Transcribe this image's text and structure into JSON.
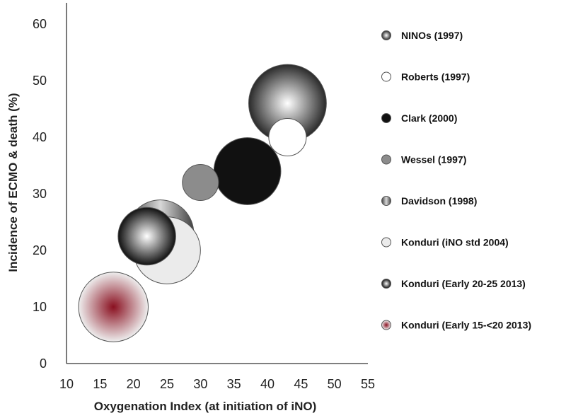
{
  "chart_data": {
    "type": "bubble",
    "xlabel": "Oxygenation Index (at initiation of iNO)",
    "ylabel": "Incidence of ECMO & death (%)",
    "xlim": [
      10,
      55
    ],
    "ylim": [
      0,
      60
    ],
    "xticks": [
      10,
      15,
      20,
      25,
      30,
      35,
      40,
      45,
      50,
      55
    ],
    "yticks": [
      0,
      10,
      20,
      30,
      40,
      50,
      60
    ],
    "grid": false,
    "legend_position": "right",
    "series": [
      {
        "name": "NINOs  (1997)",
        "x": 43.0,
        "y": 46,
        "radius": 5.8,
        "fill": "radial",
        "color_light": "#ffffff",
        "color_dark": "#2a2a2a"
      },
      {
        "name": "Roberts (1997)",
        "x": 43.0,
        "y": 40,
        "radius": 2.8,
        "fill": "solid",
        "color": "#ffffff"
      },
      {
        "name": "Clark (2000)",
        "x": 37.0,
        "y": 34,
        "radius": 5.0,
        "fill": "solid",
        "color": "#111111"
      },
      {
        "name": "Wessel (1997)",
        "x": 30.0,
        "y": 32,
        "radius": 2.7,
        "fill": "solid",
        "color": "#8c8c8c"
      },
      {
        "name": "Davidson (1998)",
        "x": 24.0,
        "y": 23,
        "radius": 5.0,
        "fill": "linear",
        "color_light": "#d8d8d8",
        "color_dark": "#404040"
      },
      {
        "name": "Konduri (iNO std 2004)",
        "x": 25.0,
        "y": 20,
        "radius": 5.0,
        "fill": "solid",
        "color": "#ebebeb"
      },
      {
        "name": "Konduri (Early 20-25 2013)",
        "x": 22.0,
        "y": 22.5,
        "radius": 4.3,
        "fill": "radial",
        "color_light": "#ffffff",
        "color_dark": "#111111"
      },
      {
        "name": "Konduri (Early 15-<20 2013)",
        "x": 17.0,
        "y": 10,
        "radius": 5.2,
        "fill": "radial",
        "color_light": "#8a1020",
        "color_dark": "#eeeeee"
      }
    ],
    "draw_order": [
      0,
      2,
      1,
      3,
      4,
      5,
      6,
      7
    ]
  }
}
